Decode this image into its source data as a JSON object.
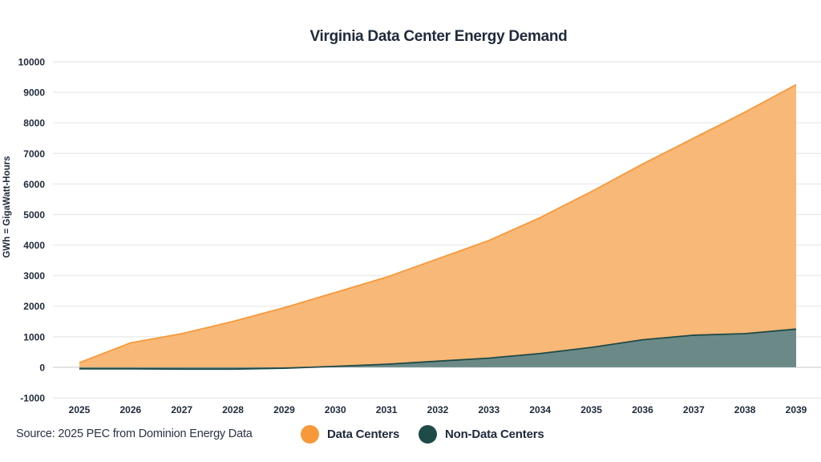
{
  "chart_data": {
    "type": "area",
    "stacked": true,
    "title": "Virginia Data Center Energy Demand",
    "xlabel": "",
    "ylabel": "GWh = GigaWatt-Hours",
    "ylim": [
      -1000,
      10000
    ],
    "yticks": [
      -1000,
      0,
      1000,
      2000,
      3000,
      4000,
      5000,
      6000,
      7000,
      8000,
      9000,
      10000
    ],
    "grid": true,
    "categories": [
      "2025",
      "2026",
      "2027",
      "2028",
      "2029",
      "2030",
      "2031",
      "2032",
      "2033",
      "2034",
      "2035",
      "2036",
      "2037",
      "2038",
      "2039"
    ],
    "series": [
      {
        "name": "Non-Data Centers",
        "color": "#1e4a47",
        "fill": "#6b8a87",
        "values": [
          -50,
          -50,
          -60,
          -60,
          -30,
          30,
          100,
          200,
          300,
          450,
          650,
          900,
          1050,
          1100,
          1250
        ]
      },
      {
        "name": "Data Centers",
        "color": "#f7993a",
        "fill": "#f8b877",
        "stacked_total": [
          150,
          800,
          1100,
          1500,
          1950,
          2450,
          2950,
          3550,
          4150,
          4900,
          5750,
          6650,
          7500,
          8350,
          9250
        ]
      }
    ],
    "legend_position": "bottom"
  },
  "footer": {
    "source": "Source: 2025 PEC from Dominion Energy Data",
    "legend": [
      {
        "label": "Data Centers",
        "color": "#f7993a"
      },
      {
        "label": "Non-Data Centers",
        "color": "#1e4a47"
      }
    ]
  }
}
